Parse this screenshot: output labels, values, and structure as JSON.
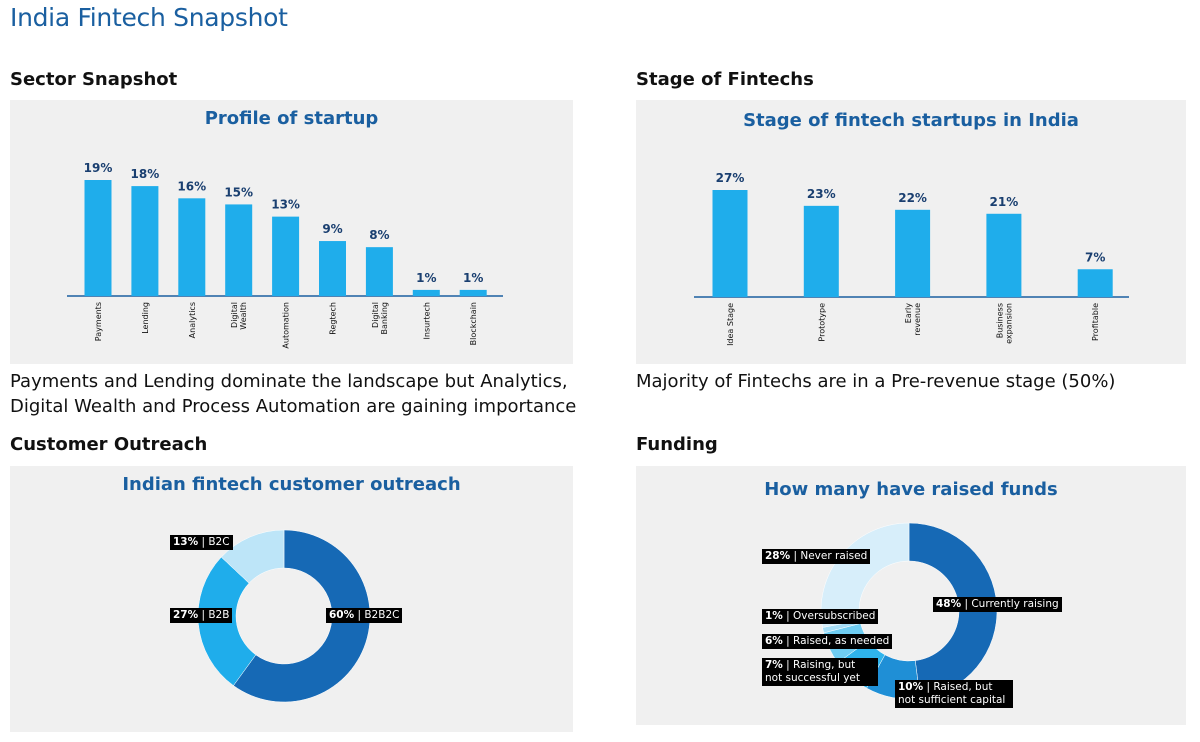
{
  "page": {
    "title": "India Fintech Snapshot"
  },
  "sections": {
    "sector": {
      "heading": "Sector Snapshot",
      "caption": [
        "Payments and Lending dominate the landscape but Analytics,",
        "Digital Wealth and Process Automation are gaining importance"
      ]
    },
    "stage": {
      "heading": "Stage of Fintechs",
      "caption": [
        "Majority of Fintechs are in a Pre-revenue stage (50%)"
      ]
    },
    "outreach": {
      "heading": "Customer Outreach"
    },
    "funding": {
      "heading": "Funding"
    }
  },
  "colors": {
    "title_blue": "#1a5fa0",
    "bar": "#1fadeb",
    "donut_dark": "#1669b5",
    "donut_mid": "#1fadeb",
    "donut_light": "#bde5f8",
    "donut_pale": "#d7eefa"
  },
  "chart_data": [
    {
      "type": "bar",
      "title": "Profile of startup",
      "categories": [
        "Payments",
        "Lending",
        "Analytics",
        "Digital Wealth",
        "Automation",
        "Regtech",
        "Digital Banking",
        "Insurtech",
        "Blockchain"
      ],
      "category_lines": [
        [
          "Payments"
        ],
        [
          "Lending"
        ],
        [
          "Analytics"
        ],
        [
          "Digital",
          "Wealth"
        ],
        [
          "Automation"
        ],
        [
          "Regtech"
        ],
        [
          "Digital",
          "Banking"
        ],
        [
          "Insurtech"
        ],
        [
          "Blockchain"
        ]
      ],
      "values": [
        19,
        18,
        16,
        15,
        13,
        9,
        8,
        1,
        1
      ],
      "value_labels": [
        "19%",
        "18%",
        "16%",
        "15%",
        "13%",
        "9%",
        "8%",
        "1%",
        "1%"
      ],
      "ylim": [
        0,
        19
      ],
      "grid": false
    },
    {
      "type": "bar",
      "title": "Stage of fintech startups in India",
      "categories": [
        "Idea Stage",
        "Prototype",
        "Early revenue",
        "Business expansion",
        "Profitable"
      ],
      "category_lines": [
        [
          "Idea Stage"
        ],
        [
          "Prototype"
        ],
        [
          "Early",
          "revenue"
        ],
        [
          "Business",
          "expansion"
        ],
        [
          "Profitable"
        ]
      ],
      "values": [
        27,
        23,
        22,
        21,
        7
      ],
      "value_labels": [
        "27%",
        "23%",
        "22%",
        "21%",
        "7%"
      ],
      "ylim": [
        0,
        27
      ],
      "grid": false
    },
    {
      "type": "pie",
      "title": "Indian fintech customer outreach",
      "slices": [
        {
          "name": "B2B2C",
          "value": 60,
          "pct": "60%",
          "color": "#1669b5"
        },
        {
          "name": "B2B",
          "value": 27,
          "pct": "27%",
          "color": "#1fadeb"
        },
        {
          "name": "B2C",
          "value": 13,
          "pct": "13%",
          "color": "#bde5f8"
        }
      ]
    },
    {
      "type": "pie",
      "title": "How many have raised funds",
      "slices": [
        {
          "name": "Currently raising",
          "value": 48,
          "pct": "48%",
          "color": "#1669b5"
        },
        {
          "name": "Raised, but not sufficient capital",
          "value": 10,
          "pct": "10%",
          "color": "#1f8fd6"
        },
        {
          "name": "Raising, but not successful yet",
          "value": 7,
          "pct": "7%",
          "color": "#2fb4ec"
        },
        {
          "name": "Raised, as needed",
          "value": 6,
          "pct": "6%",
          "color": "#6fcdf2"
        },
        {
          "name": "Oversubscribed",
          "value": 1,
          "pct": "1%",
          "color": "#a6def7"
        },
        {
          "name": "Never raised",
          "value": 28,
          "pct": "28%",
          "color": "#d7eefa"
        }
      ]
    }
  ]
}
